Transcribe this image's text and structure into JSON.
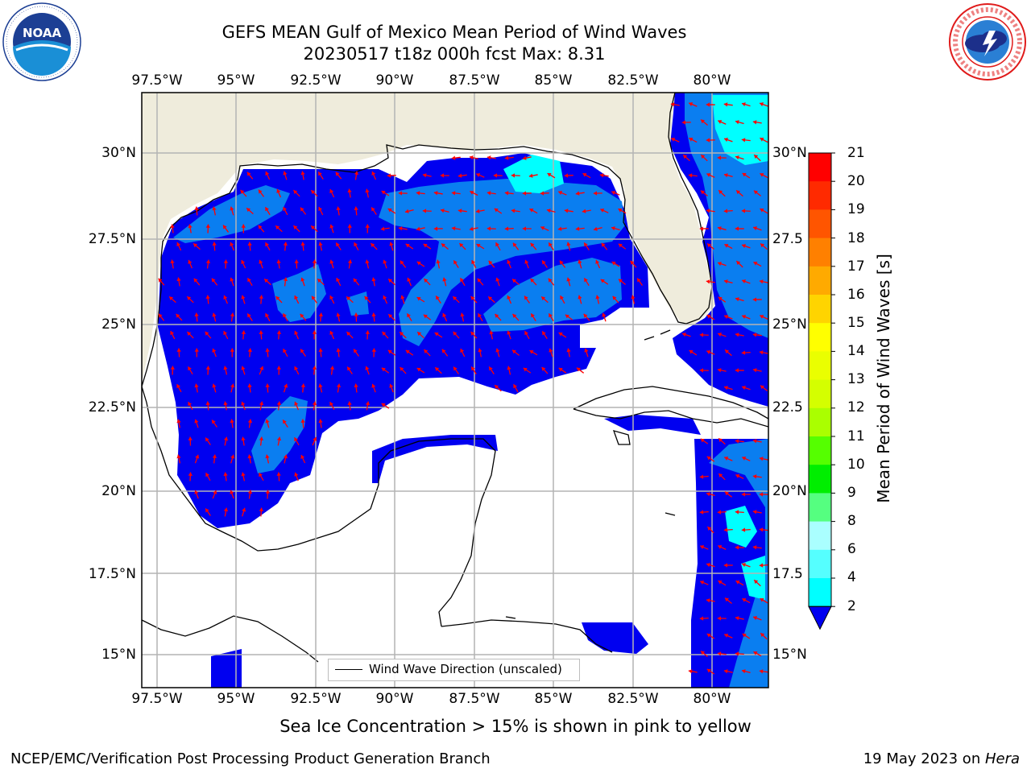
{
  "header": {
    "title_line1": "GEFS MEAN Gulf of Mexico Mean Period of Wind Waves",
    "title_line2": "20230517 t18z 000h fcst   Max: 8.31"
  },
  "logos": {
    "left_name": "NOAA",
    "left_ring_text": "NATIONAL OCEANIC AND ATMOSPHERIC ADMINISTRATION · U.S. DEPARTMENT OF COMMERCE",
    "right_ring_text": "NATIONAL WEATHER SERVICE"
  },
  "map": {
    "lon_labels": [
      "97.5°W",
      "95°W",
      "92.5°W",
      "90°W",
      "87.5°W",
      "85°W",
      "82.5°W",
      "80°W"
    ],
    "lat_labels_left": [
      "30°N",
      "27.5°N",
      "25°N",
      "22.5°N",
      "20°N",
      "17.5°N",
      "15°N"
    ],
    "lat_labels_right": [
      "30°N",
      "27.5",
      "25°N",
      "22.5",
      "20°N",
      "17.5",
      "15°N"
    ],
    "legend_label": "Wind Wave Direction (unscaled)",
    "colors": {
      "land": "#efecdc",
      "ocean_low": "#0000f0",
      "ocean_mid": "#0a7ef0",
      "ocean_high": "#00ffff",
      "arrow": "#ff0000",
      "grid": "#b4b4b4"
    }
  },
  "colorbar": {
    "title": "Mean Period of Wind Waves [s]",
    "ticks": [
      "21",
      "20",
      "19",
      "18",
      "17",
      "16",
      "15",
      "14",
      "13",
      "12",
      "11",
      "10",
      "9",
      "8",
      "6",
      "4",
      "2"
    ],
    "colors": [
      "#ff0000",
      "#ff2a00",
      "#ff5500",
      "#ff8000",
      "#ffaa00",
      "#ffd400",
      "#ffff00",
      "#eaff00",
      "#d4ff00",
      "#aaff00",
      "#55ff00",
      "#00ee00",
      "#55ff80",
      "#aaffff",
      "#55ffff",
      "#00ffff",
      "#0a7ef0"
    ],
    "extend_color": "#0000f0"
  },
  "caption": "Sea Ice Concentration > 15% is shown in pink to yellow",
  "footer": {
    "left": "NCEP/EMC/Verification Post Processing Product Generation Branch",
    "date": "19 May 2023 on ",
    "machine": "Hera"
  }
}
